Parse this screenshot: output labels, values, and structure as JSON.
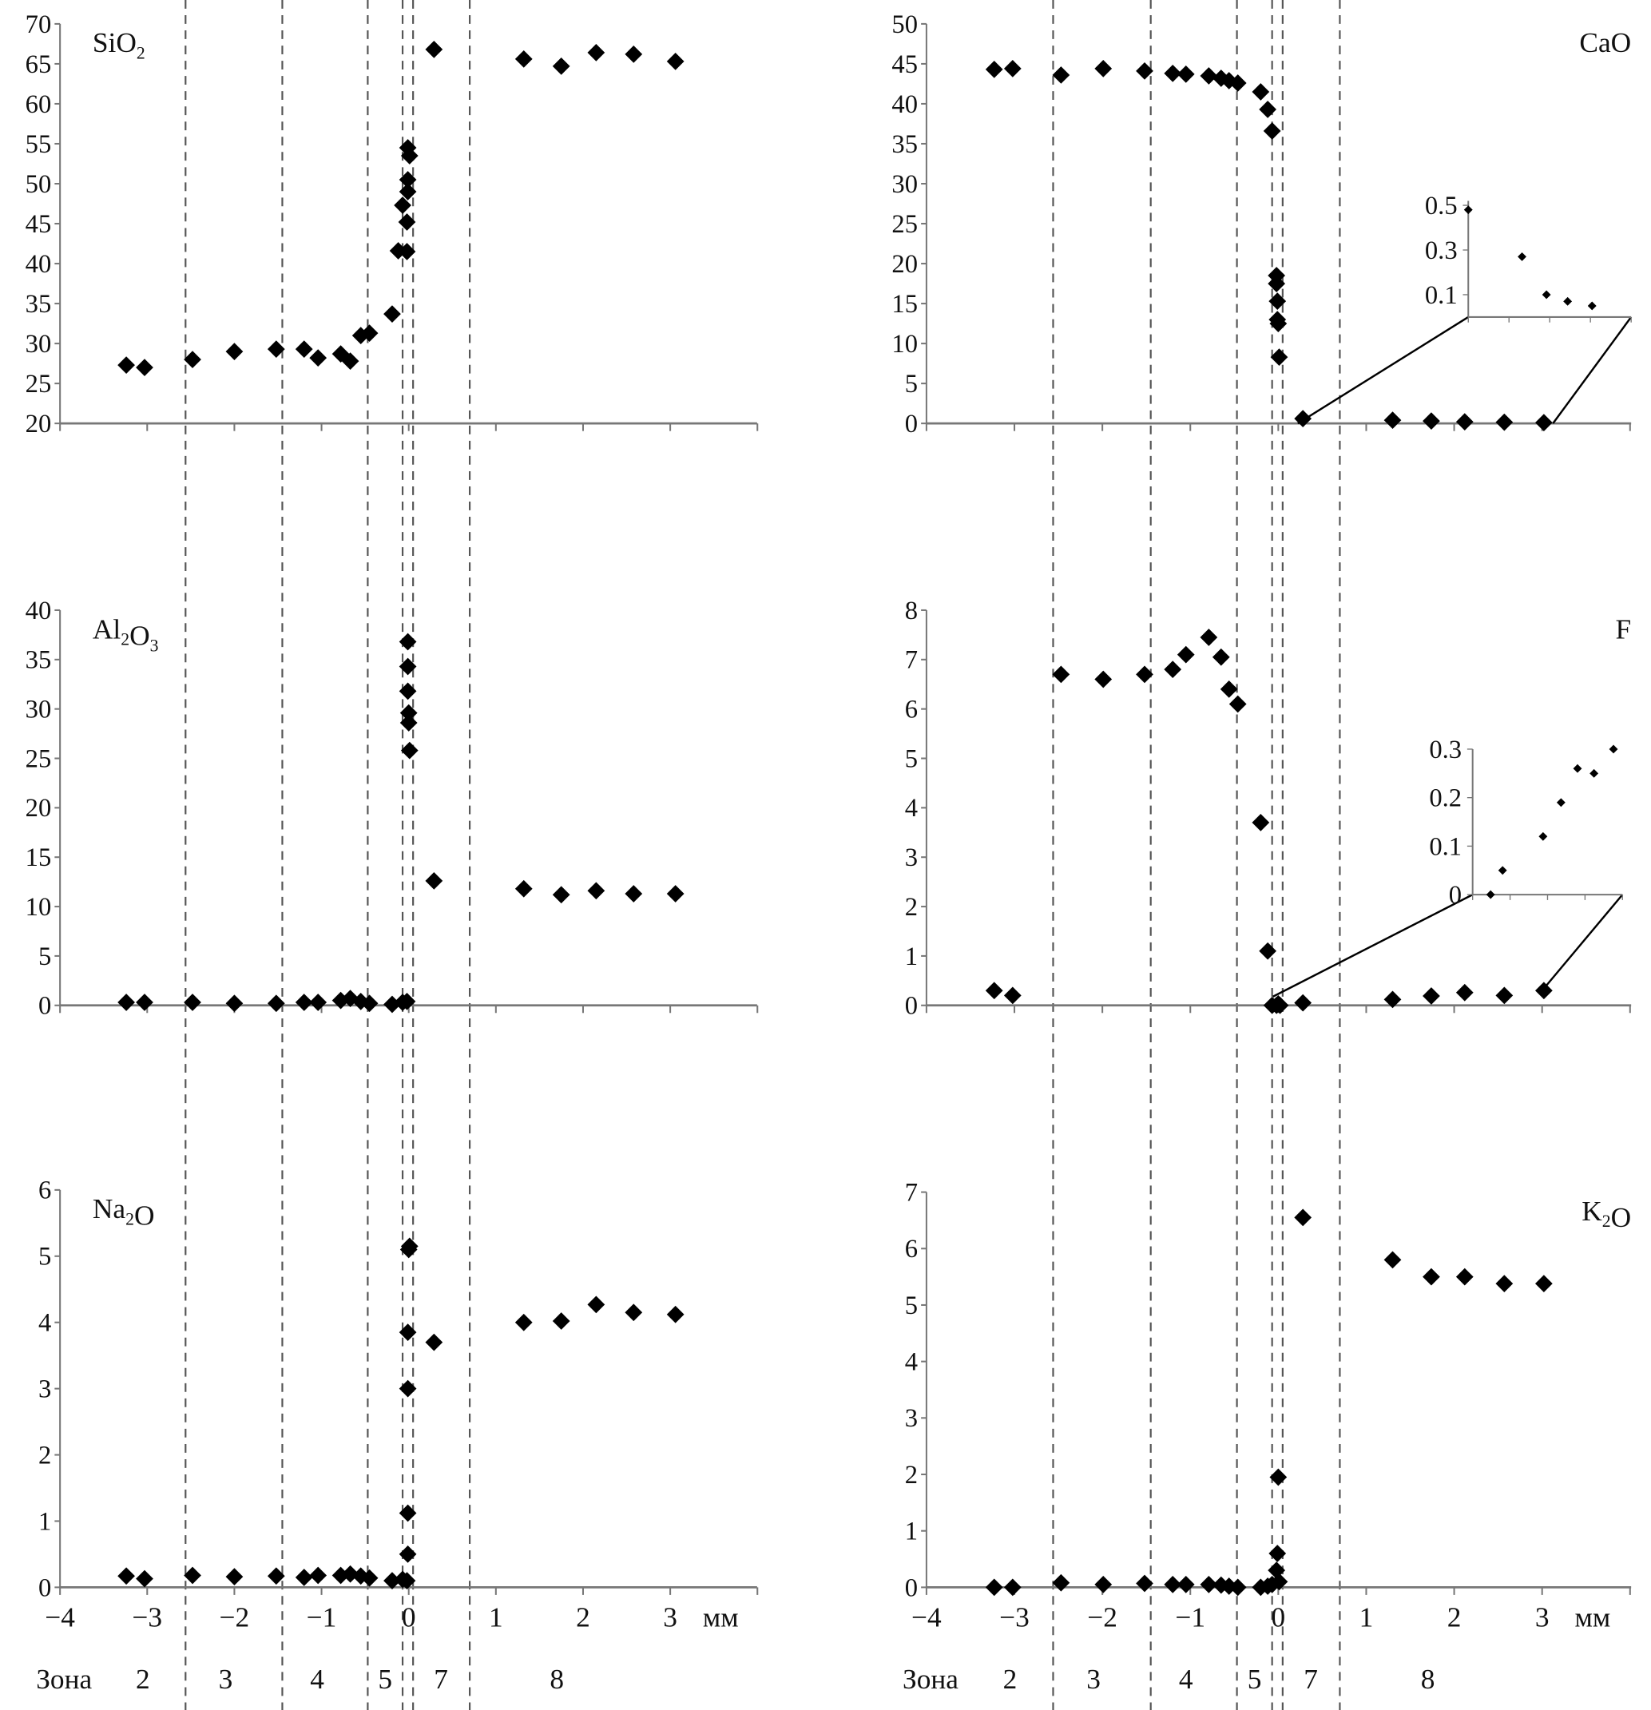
{
  "chart_data": [
    {
      "type": "scatter",
      "title": "SiO",
      "title_sub": "2",
      "ylim": [
        20,
        70
      ],
      "yticks": [
        20,
        25,
        30,
        35,
        40,
        45,
        50,
        55,
        60,
        65,
        70
      ],
      "xlim": [
        -4,
        4
      ],
      "points": [
        [
          -3.24,
          27.3
        ],
        [
          -3.03,
          27
        ],
        [
          -2.48,
          28
        ],
        [
          -2.0,
          29
        ],
        [
          -1.52,
          29.3
        ],
        [
          -1.2,
          29.3
        ],
        [
          -1.04,
          28.2
        ],
        [
          -0.78,
          28.7
        ],
        [
          -0.67,
          27.8
        ],
        [
          -0.55,
          31
        ],
        [
          -0.45,
          31.3
        ],
        [
          -0.19,
          33.7
        ],
        [
          -0.12,
          41.6
        ],
        [
          -0.07,
          47.3
        ],
        [
          -0.02,
          41.5
        ],
        [
          -0.02,
          45.2
        ],
        [
          -0.01,
          49
        ],
        [
          -0.01,
          50.5
        ],
        [
          -0.01,
          54.5
        ],
        [
          0.01,
          53.5
        ],
        [
          0.29,
          66.8
        ],
        [
          1.32,
          65.6
        ],
        [
          1.75,
          64.7
        ],
        [
          2.15,
          66.4
        ],
        [
          2.58,
          66.2
        ],
        [
          3.06,
          65.3
        ]
      ]
    },
    {
      "type": "scatter",
      "title": "CaO",
      "title_sub": "",
      "ylim": [
        0,
        50
      ],
      "yticks": [
        0,
        5,
        10,
        15,
        20,
        25,
        30,
        35,
        40,
        45,
        50
      ],
      "xlim": [
        -4,
        4
      ],
      "points": [
        [
          -3.23,
          44.3
        ],
        [
          -3.02,
          44.4
        ],
        [
          -2.47,
          43.6
        ],
        [
          -1.99,
          44.4
        ],
        [
          -1.52,
          44.1
        ],
        [
          -1.2,
          43.8
        ],
        [
          -1.05,
          43.7
        ],
        [
          -0.79,
          43.5
        ],
        [
          -0.65,
          43.2
        ],
        [
          -0.56,
          42.9
        ],
        [
          -0.46,
          42.6
        ],
        [
          -0.2,
          41.5
        ],
        [
          -0.12,
          39.3
        ],
        [
          -0.07,
          36.6
        ],
        [
          -0.02,
          18.5
        ],
        [
          -0.02,
          17.5
        ],
        [
          -0.01,
          15.3
        ],
        [
          -0.01,
          13
        ],
        [
          0,
          12.5
        ],
        [
          0.01,
          8.3
        ],
        [
          0.28,
          0.6
        ],
        [
          1.3,
          0.4
        ],
        [
          1.74,
          0.3
        ],
        [
          2.12,
          0.2
        ],
        [
          2.57,
          0.15
        ],
        [
          3.02,
          0.1
        ]
      ],
      "inset": {
        "ylim": [
          0,
          0.52
        ],
        "yticks": [
          "0.1",
          "0.3",
          "0.5"
        ],
        "points": [
          [
            0,
            0.48
          ],
          [
            3.3,
            0.27
          ],
          [
            4.8,
            0.1
          ],
          [
            6.1,
            0.07
          ],
          [
            7.6,
            0.05
          ]
        ],
        "xmax": 10
      }
    },
    {
      "type": "scatter",
      "title": "Al",
      "title_sub": "2",
      "title2": "O",
      "title_sub2": "3",
      "ylim": [
        0,
        40
      ],
      "yticks": [
        0,
        5,
        10,
        15,
        20,
        25,
        30,
        35,
        40
      ],
      "xlim": [
        -4,
        4
      ],
      "points": [
        [
          -3.24,
          0.3
        ],
        [
          -3.03,
          0.3
        ],
        [
          -2.48,
          0.3
        ],
        [
          -2.0,
          0.2
        ],
        [
          -1.52,
          0.2
        ],
        [
          -1.2,
          0.3
        ],
        [
          -1.04,
          0.3
        ],
        [
          -0.78,
          0.5
        ],
        [
          -0.67,
          0.7
        ],
        [
          -0.55,
          0.4
        ],
        [
          -0.45,
          0.2
        ],
        [
          -0.19,
          0.1
        ],
        [
          -0.07,
          0.3
        ],
        [
          -0.02,
          0.4
        ],
        [
          -0.01,
          36.8
        ],
        [
          -0.01,
          34.3
        ],
        [
          -0.01,
          31.8
        ],
        [
          0,
          29.6
        ],
        [
          0,
          28.6
        ],
        [
          0.01,
          25.8
        ],
        [
          0.29,
          12.6
        ],
        [
          1.32,
          11.8
        ],
        [
          1.75,
          11.2
        ],
        [
          2.15,
          11.6
        ],
        [
          2.58,
          11.3
        ],
        [
          3.06,
          11.3
        ]
      ]
    },
    {
      "type": "scatter",
      "title": "F",
      "title_sub": "",
      "ylim": [
        0,
        8
      ],
      "yticks": [
        0,
        1,
        2,
        3,
        4,
        5,
        6,
        7,
        8
      ],
      "xlim": [
        -4,
        4
      ],
      "points": [
        [
          -3.23,
          0.3
        ],
        [
          -3.02,
          0.2
        ],
        [
          -2.47,
          6.7
        ],
        [
          -1.99,
          6.6
        ],
        [
          -1.52,
          6.7
        ],
        [
          -1.2,
          6.8
        ],
        [
          -1.05,
          7.1
        ],
        [
          -0.79,
          7.45
        ],
        [
          -0.65,
          7.05
        ],
        [
          -0.56,
          6.4
        ],
        [
          -0.46,
          6.1
        ],
        [
          -0.2,
          3.7
        ],
        [
          -0.12,
          1.1
        ],
        [
          -0.07,
          0
        ],
        [
          -0.02,
          0
        ],
        [
          0,
          0.03
        ],
        [
          0.02,
          0
        ],
        [
          0.28,
          0.05
        ],
        [
          1.3,
          0.12
        ],
        [
          1.74,
          0.19
        ],
        [
          2.12,
          0.26
        ],
        [
          2.57,
          0.2
        ],
        [
          3.02,
          0.3
        ]
      ],
      "inset": {
        "ylim": [
          0,
          0.3
        ],
        "yticks": [
          "0",
          "0.1",
          "0.2",
          "0.3"
        ],
        "points": [
          [
            1.2,
            0
          ],
          [
            2.0,
            0.05
          ],
          [
            4.7,
            0.12
          ],
          [
            5.9,
            0.19
          ],
          [
            7.0,
            0.26
          ],
          [
            8.1,
            0.25
          ],
          [
            9.4,
            0.3
          ]
        ],
        "xmax": 10
      }
    },
    {
      "type": "scatter",
      "title": "Na",
      "title_sub": "2",
      "title2": "O",
      "title_sub2": "",
      "ylim": [
        0,
        6
      ],
      "yticks": [
        0,
        1,
        2,
        3,
        4,
        5,
        6
      ],
      "xlim": [
        -4,
        4
      ],
      "points": [
        [
          -3.24,
          0.17
        ],
        [
          -3.03,
          0.13
        ],
        [
          -2.48,
          0.18
        ],
        [
          -2.0,
          0.16
        ],
        [
          -1.52,
          0.17
        ],
        [
          -1.2,
          0.15
        ],
        [
          -1.04,
          0.18
        ],
        [
          -0.78,
          0.18
        ],
        [
          -0.67,
          0.2
        ],
        [
          -0.55,
          0.17
        ],
        [
          -0.45,
          0.14
        ],
        [
          -0.19,
          0.1
        ],
        [
          -0.07,
          0.12
        ],
        [
          -0.02,
          0.1
        ],
        [
          -0.01,
          0.5
        ],
        [
          -0.01,
          1.12
        ],
        [
          -0.01,
          3.0
        ],
        [
          -0.01,
          3.85
        ],
        [
          0,
          5.1
        ],
        [
          0.01,
          5.15
        ],
        [
          0.29,
          3.7
        ],
        [
          1.32,
          4.0
        ],
        [
          1.75,
          4.02
        ],
        [
          2.15,
          4.27
        ],
        [
          2.58,
          4.15
        ],
        [
          3.06,
          4.12
        ]
      ]
    },
    {
      "type": "scatter",
      "title": "K",
      "title_sub": "2",
      "title2": "O",
      "title_sub2": "",
      "ylim": [
        0,
        7
      ],
      "yticks": [
        0,
        1,
        2,
        3,
        4,
        5,
        6,
        7
      ],
      "xlim": [
        -4,
        4
      ],
      "points": [
        [
          -3.23,
          0
        ],
        [
          -3.02,
          0
        ],
        [
          -2.47,
          0.08
        ],
        [
          -1.99,
          0.05
        ],
        [
          -1.52,
          0.07
        ],
        [
          -1.2,
          0.05
        ],
        [
          -1.05,
          0.05
        ],
        [
          -0.79,
          0.05
        ],
        [
          -0.65,
          0.04
        ],
        [
          -0.56,
          0.02
        ],
        [
          -0.46,
          0
        ],
        [
          -0.2,
          0
        ],
        [
          -0.12,
          0.02
        ],
        [
          -0.07,
          0.05
        ],
        [
          -0.02,
          0.3
        ],
        [
          -0.01,
          0.6
        ],
        [
          0,
          1.95
        ],
        [
          0.01,
          0.1
        ],
        [
          0.28,
          6.55
        ],
        [
          1.3,
          5.8
        ],
        [
          1.74,
          5.5
        ],
        [
          2.12,
          5.5
        ],
        [
          2.57,
          5.38
        ],
        [
          3.02,
          5.38
        ]
      ]
    }
  ],
  "x_axis": {
    "ticks": [
      "−4",
      "−3",
      "−2",
      "−1",
      "0",
      "1",
      "2",
      "3"
    ],
    "unit": "мм"
  },
  "zones": {
    "label": "Зона",
    "names": [
      "2",
      "3",
      "4",
      "5",
      "7",
      "8"
    ],
    "name_centers_mm": [
      -3.05,
      -2.1,
      -1.05,
      -0.27,
      0.37,
      1.7
    ],
    "boundaries_mm": [
      -2.56,
      -1.45,
      -0.47,
      -0.07,
      0.05,
      0.7
    ]
  }
}
